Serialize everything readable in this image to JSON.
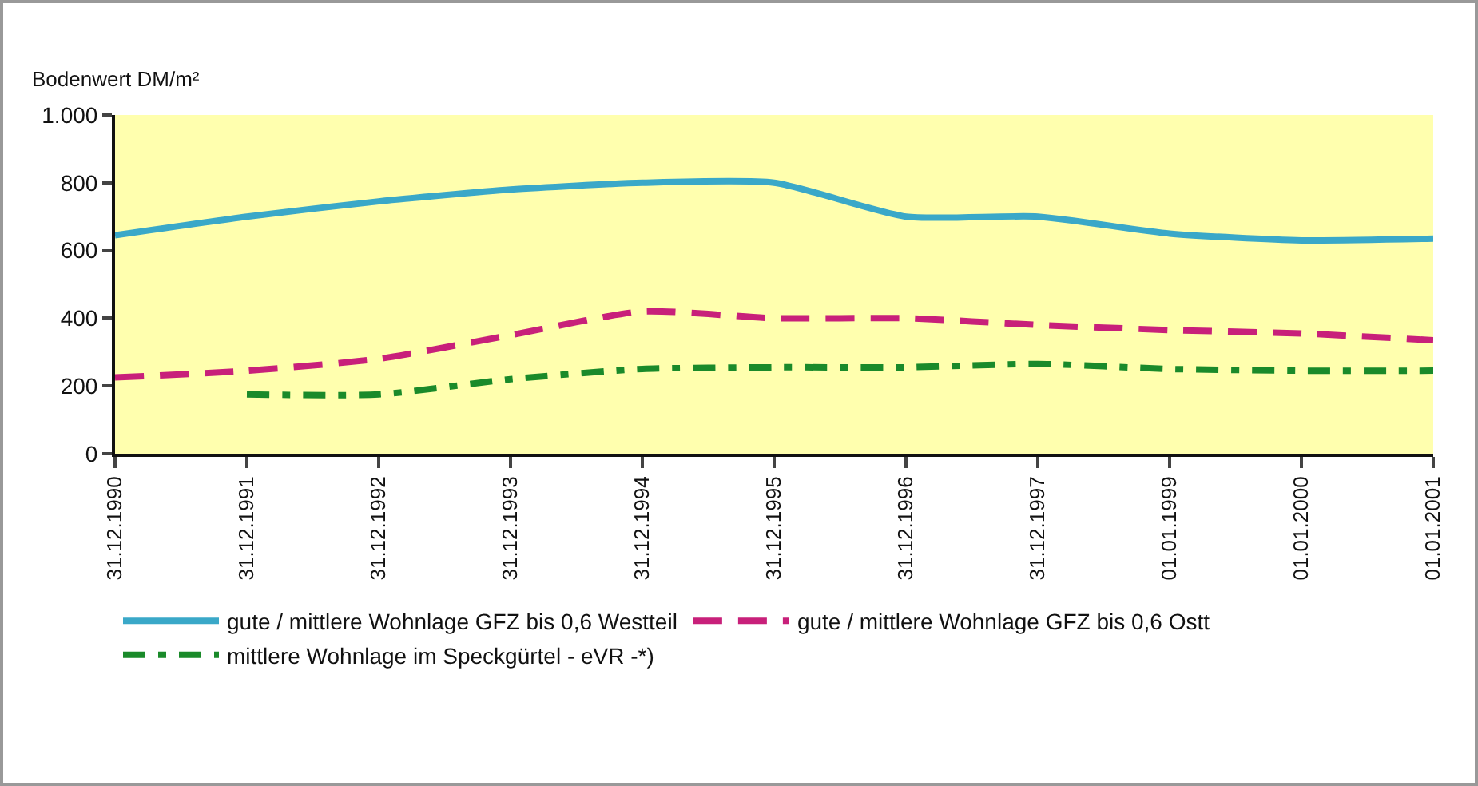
{
  "chart_data": {
    "type": "line",
    "ylabel": "Bodenwert DM/m²",
    "categories": [
      "31.12.1990",
      "31.12.1991",
      "31.12.1992",
      "31.12.1993",
      "31.12.1994",
      "31.12.1995",
      "31.12.1996",
      "31.12.1997",
      "01.01.1999",
      "01.01.2000",
      "01.01.2001"
    ],
    "series": [
      {
        "name": "gute / mittlere Wohnlage GFZ bis 0,6 Westteil",
        "color": "#3aa8c8",
        "line_style": "solid",
        "values": [
          645,
          700,
          745,
          780,
          800,
          800,
          700,
          700,
          650,
          630,
          635
        ]
      },
      {
        "name": "gute / mittlere Wohnlage GFZ bis 0,6 Ostt",
        "color": "#c8207a",
        "line_style": "dashed",
        "values": [
          225,
          245,
          280,
          350,
          420,
          400,
          400,
          380,
          365,
          355,
          335
        ]
      },
      {
        "name": "mittlere Wohnlage im Speckgürtel - eVR -*)",
        "color": "#1a8a2a",
        "line_style": "dotted",
        "values": [
          null,
          175,
          175,
          220,
          250,
          255,
          255,
          265,
          250,
          245,
          245
        ]
      }
    ],
    "ylim": [
      0,
      1000
    ],
    "yticks": [
      0,
      200,
      400,
      600,
      800,
      {
        "value": 1000,
        "label": "1.000"
      }
    ],
    "grid": false,
    "legend": "bottom",
    "marker": "none"
  }
}
